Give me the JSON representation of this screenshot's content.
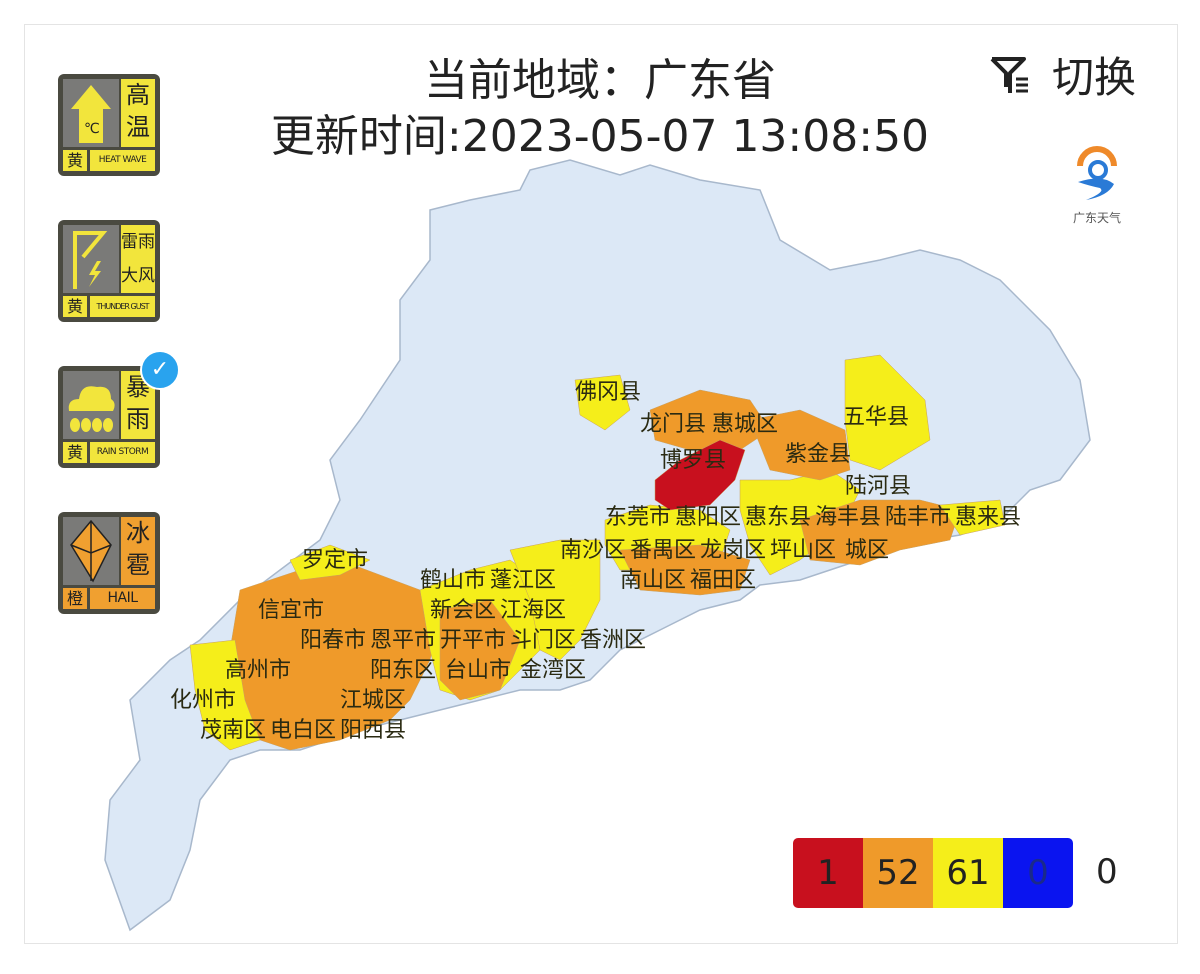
{
  "header": {
    "region_label": "当前地域：广东省",
    "update_time": "更新时间:2023-05-07 13:08:50"
  },
  "switch": {
    "label": "切换",
    "icon": "filter-icon"
  },
  "logo": {
    "text": "广东天气"
  },
  "warnings": [
    {
      "cn": "高温",
      "level": "黄",
      "en": "HEAT WAVE",
      "color": "#f2e53c",
      "icon": "thermometer-arrow-icon"
    },
    {
      "cn": "雷雨大风",
      "level": "黄",
      "en": "THUNDER GUST",
      "color": "#f2e53c",
      "icon": "lightning-flag-icon"
    },
    {
      "cn": "暴雨",
      "level": "黄",
      "en": "RAIN STORM",
      "color": "#f2e53c",
      "icon": "rain-cloud-icon",
      "selected": true
    },
    {
      "cn": "冰雹",
      "level": "橙",
      "en": "HAIL",
      "color": "#f0a030",
      "icon": "hail-icon"
    }
  ],
  "map": {
    "colors": {
      "base": "#dce8f6",
      "red": "#c8101e",
      "orange": "#ef9a2a",
      "yellow": "#f5ee1a",
      "blue": "#0a14f0"
    },
    "labels": [
      "佛冈县",
      "龙门县",
      "惠城区",
      "博罗县",
      "紫金县",
      "五华县",
      "陆河县",
      "惠东县",
      "海丰县",
      "陆丰市",
      "惠来县",
      "城区",
      "东莞市",
      "惠阳区",
      "南沙区",
      "番禺区",
      "龙岗区",
      "坪山区",
      "南山区",
      "福田区",
      "罗定市",
      "鹤山市",
      "蓬江区",
      "江海区",
      "新会区",
      "开平市",
      "信宜市",
      "阳春市",
      "恩平市",
      "斗门区",
      "香洲区",
      "台山市",
      "金湾区",
      "高州市",
      "阳东区",
      "化州市",
      "江城区",
      "茂南区",
      "阳西县",
      "电白区"
    ]
  },
  "legend": {
    "red": "1",
    "orange": "52",
    "yellow": "61",
    "blue": "0",
    "other": "0"
  }
}
